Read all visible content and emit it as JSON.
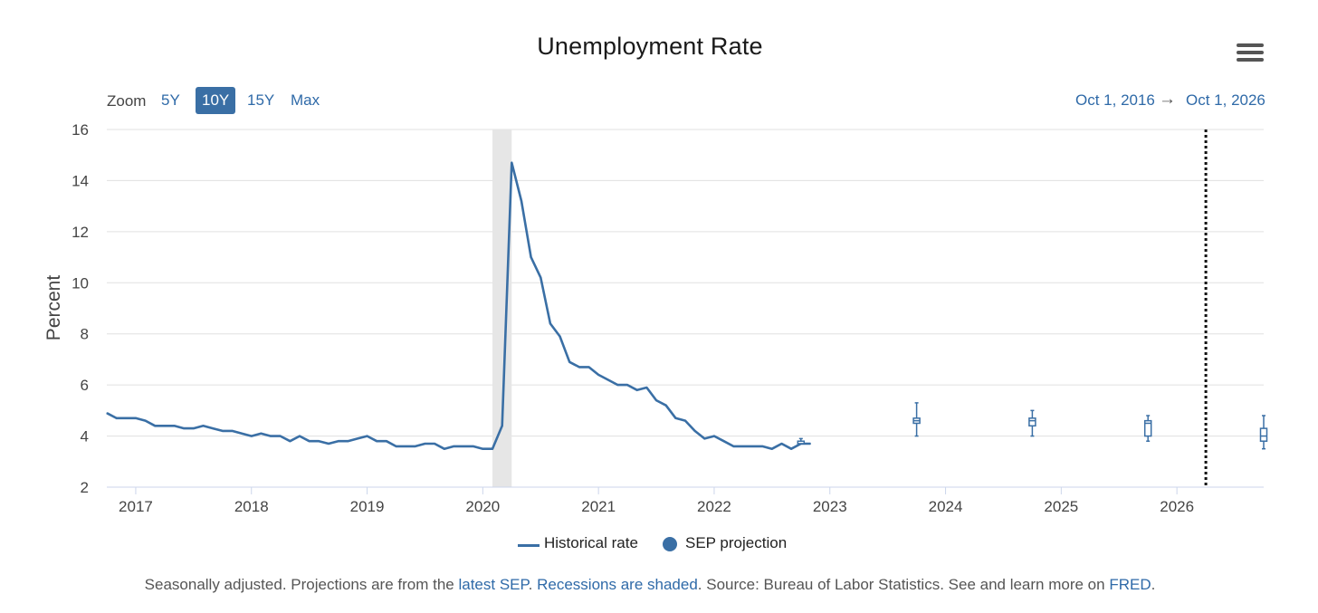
{
  "chart": {
    "title": "Unemployment Rate",
    "zoom_label": "Zoom",
    "zoom_options": [
      "5Y",
      "10Y",
      "15Y",
      "Max"
    ],
    "zoom_active": "10Y",
    "range_from": "Oct 1, 2016",
    "range_arrow": "→",
    "range_to": "Oct 1, 2026",
    "menu_icon": "hamburger-menu-icon"
  },
  "legend": {
    "historical": "Historical rate",
    "projection": "SEP projection"
  },
  "footer": {
    "text1": "Seasonally adjusted. Projections are from the ",
    "link1": "latest SEP",
    "text2": ". ",
    "link2": "Recessions are shaded",
    "text3": ". Source: Bureau of Labor Statistics. See and learn more on ",
    "link3": "FRED",
    "text4": "."
  },
  "colors": {
    "series": "#3a6fa5",
    "recession": "#e6e6e6",
    "grid": "#e0e0e0",
    "link": "#2f6aa8"
  },
  "chart_data": {
    "type": "line",
    "title": "Unemployment Rate",
    "ylabel": "Percent",
    "xlabel": "",
    "ylim": [
      2,
      16
    ],
    "yticks": [
      2,
      4,
      6,
      8,
      10,
      12,
      14,
      16
    ],
    "xlim": [
      "2016-10",
      "2026-10"
    ],
    "xticks": [
      "2017",
      "2018",
      "2019",
      "2020",
      "2021",
      "2022",
      "2023",
      "2024",
      "2025",
      "2026"
    ],
    "grid": true,
    "legend_position": "bottom-center",
    "recession": {
      "start": "2020-02",
      "end": "2020-04"
    },
    "today_marker": "2026-04",
    "series": [
      {
        "name": "Historical rate",
        "x": [
          "2016-10",
          "2016-11",
          "2016-12",
          "2017-01",
          "2017-02",
          "2017-03",
          "2017-04",
          "2017-05",
          "2017-06",
          "2017-07",
          "2017-08",
          "2017-09",
          "2017-10",
          "2017-11",
          "2017-12",
          "2018-01",
          "2018-02",
          "2018-03",
          "2018-04",
          "2018-05",
          "2018-06",
          "2018-07",
          "2018-08",
          "2018-09",
          "2018-10",
          "2018-11",
          "2018-12",
          "2019-01",
          "2019-02",
          "2019-03",
          "2019-04",
          "2019-05",
          "2019-06",
          "2019-07",
          "2019-08",
          "2019-09",
          "2019-10",
          "2019-11",
          "2019-12",
          "2020-01",
          "2020-02",
          "2020-03",
          "2020-04",
          "2020-05",
          "2020-06",
          "2020-07",
          "2020-08",
          "2020-09",
          "2020-10",
          "2020-11",
          "2020-12",
          "2021-01",
          "2021-02",
          "2021-03",
          "2021-04",
          "2021-05",
          "2021-06",
          "2021-07",
          "2021-08",
          "2021-09",
          "2021-10",
          "2021-11",
          "2021-12",
          "2022-01",
          "2022-02",
          "2022-03",
          "2022-04",
          "2022-05",
          "2022-06",
          "2022-07",
          "2022-08",
          "2022-09",
          "2022-10",
          "2022-11"
        ],
        "values": [
          4.9,
          4.7,
          4.7,
          4.7,
          4.6,
          4.4,
          4.4,
          4.4,
          4.3,
          4.3,
          4.4,
          4.3,
          4.2,
          4.2,
          4.1,
          4.0,
          4.1,
          4.0,
          4.0,
          3.8,
          4.0,
          3.8,
          3.8,
          3.7,
          3.8,
          3.8,
          3.9,
          4.0,
          3.8,
          3.8,
          3.6,
          3.6,
          3.6,
          3.7,
          3.7,
          3.5,
          3.6,
          3.6,
          3.6,
          3.5,
          3.5,
          4.4,
          14.7,
          13.2,
          11.0,
          10.2,
          8.4,
          7.9,
          6.9,
          6.7,
          6.7,
          6.4,
          6.2,
          6.0,
          6.0,
          5.8,
          5.9,
          5.4,
          5.2,
          4.7,
          4.6,
          4.2,
          3.9,
          4.0,
          3.8,
          3.6,
          3.6,
          3.6,
          3.6,
          3.5,
          3.7,
          3.5,
          3.7,
          3.7
        ]
      },
      {
        "name": "SEP projection",
        "type": "boxplot",
        "points": [
          {
            "x": "2022-10",
            "low": 3.7,
            "q1": 3.7,
            "median": 3.7,
            "q3": 3.8,
            "high": 3.9
          },
          {
            "x": "2023-10",
            "low": 4.0,
            "q1": 4.5,
            "median": 4.6,
            "q3": 4.7,
            "high": 5.3
          },
          {
            "x": "2024-10",
            "low": 4.0,
            "q1": 4.4,
            "median": 4.6,
            "q3": 4.7,
            "high": 5.0
          },
          {
            "x": "2025-10",
            "low": 3.8,
            "q1": 4.0,
            "median": 4.5,
            "q3": 4.6,
            "high": 4.8
          },
          {
            "x": "2026-10",
            "low": 3.5,
            "q1": 3.8,
            "median": 4.0,
            "q3": 4.3,
            "high": 4.8
          }
        ]
      }
    ]
  }
}
